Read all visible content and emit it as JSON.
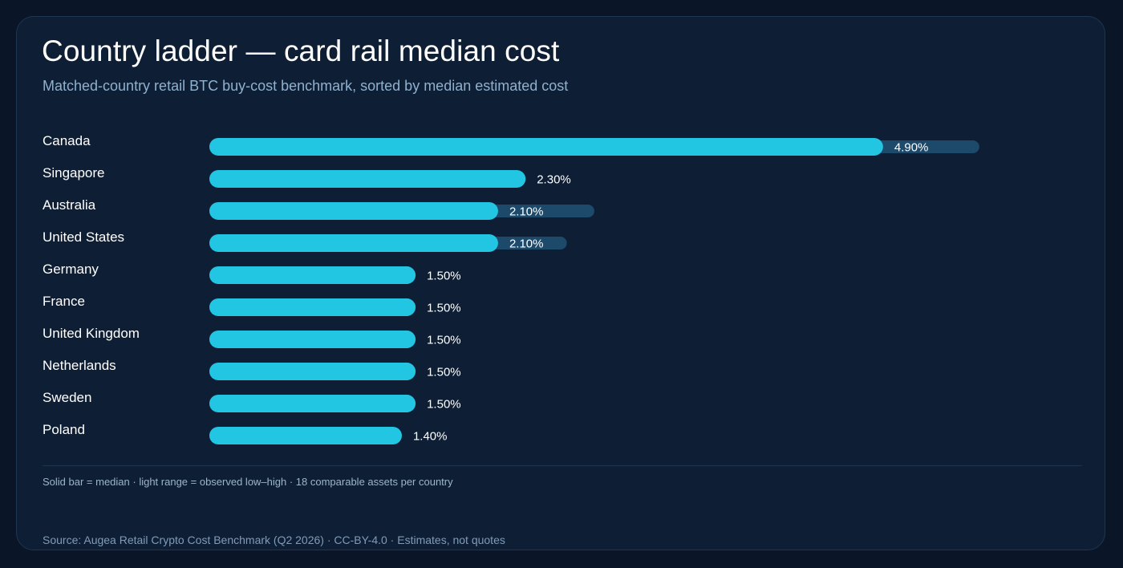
{
  "colors": {
    "background": "#0a1628",
    "card": "#0e1f35",
    "median_bar": "#22c5e2",
    "range_bar": "#1d4a6b",
    "text": "#ffffff",
    "muted_text": "#8fb1cf"
  },
  "chart_data": {
    "type": "bar",
    "orientation": "horizontal",
    "title": "Country ladder — card rail median cost",
    "subtitle": "Matched-country retail BTC buy-cost benchmark, sorted by median estimated cost",
    "categories": [
      "Canada",
      "Singapore",
      "Australia",
      "United States",
      "Germany",
      "France",
      "United Kingdom",
      "Netherlands",
      "Sweden",
      "Poland"
    ],
    "series": [
      {
        "name": "median",
        "values": [
          4.9,
          2.3,
          2.1,
          2.1,
          1.5,
          1.5,
          1.5,
          1.5,
          1.5,
          1.4
        ],
        "labels": [
          "4.90%",
          "2.30%",
          "2.10%",
          "2.10%",
          "1.50%",
          "1.50%",
          "1.50%",
          "1.50%",
          "1.50%",
          "1.40%"
        ]
      },
      {
        "name": "observed high",
        "values": [
          5.6,
          2.3,
          2.8,
          2.6,
          1.5,
          1.5,
          1.5,
          1.5,
          1.5,
          1.4
        ]
      }
    ],
    "legend_note": "Solid bar = median · light range = observed low–high · 18 comparable assets per country",
    "grid": false,
    "legend": "bottom"
  },
  "footer": {
    "source": "Source: Augea Retail Crypto Cost Benchmark (Q2 2026) · CC-BY-4.0 · Estimates, not quotes"
  }
}
